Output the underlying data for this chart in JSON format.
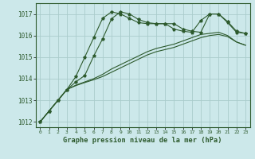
{
  "title": "Graphe pression niveau de la mer (hPa)",
  "background_color": "#cce8ea",
  "grid_color": "#aacccc",
  "line_color": "#2d5a2d",
  "xlim": [
    -0.5,
    23.5
  ],
  "ylim": [
    1011.75,
    1017.5
  ],
  "yticks": [
    1012,
    1013,
    1014,
    1015,
    1016,
    1017
  ],
  "xticks": [
    0,
    1,
    2,
    3,
    4,
    5,
    6,
    7,
    8,
    9,
    10,
    11,
    12,
    13,
    14,
    15,
    16,
    17,
    18,
    19,
    20,
    21,
    22,
    23
  ],
  "series": [
    {
      "y": [
        1012.0,
        1012.5,
        1013.0,
        1013.5,
        1014.1,
        1015.0,
        1015.9,
        1016.8,
        1017.1,
        1017.0,
        1016.8,
        1016.6,
        1016.55,
        1016.55,
        1016.55,
        1016.3,
        1016.2,
        1016.15,
        1016.7,
        1017.0,
        1017.0,
        1016.6,
        1016.15,
        1016.1
      ],
      "x_start": 0,
      "markers": true
    },
    {
      "y": [
        1012.0,
        1012.5,
        1013.0,
        1013.5,
        1013.85,
        1014.15,
        1015.05,
        1015.85,
        1016.78,
        1017.1,
        1017.0,
        1016.75,
        1016.6,
        1016.55,
        1016.55,
        1016.55,
        1016.3,
        1016.2,
        1016.15,
        1017.0,
        1017.0,
        1016.65,
        1016.2,
        1016.1
      ],
      "x_start": 0,
      "markers": true
    },
    {
      "y": [
        1012.0,
        1012.5,
        1013.0,
        1013.5,
        1013.7,
        1013.85,
        1014.0,
        1014.2,
        1014.45,
        1014.65,
        1014.85,
        1015.05,
        1015.25,
        1015.4,
        1015.5,
        1015.6,
        1015.75,
        1015.9,
        1016.05,
        1016.1,
        1016.15,
        1016.0,
        1015.7,
        1015.55
      ],
      "x_start": 0,
      "markers": false
    },
    {
      "y": [
        1012.0,
        1012.5,
        1013.0,
        1013.5,
        1013.68,
        1013.82,
        1013.95,
        1014.1,
        1014.3,
        1014.5,
        1014.7,
        1014.9,
        1015.1,
        1015.25,
        1015.35,
        1015.45,
        1015.6,
        1015.75,
        1015.9,
        1016.0,
        1016.05,
        1015.95,
        1015.7,
        1015.55
      ],
      "x_start": 0,
      "markers": false
    }
  ]
}
